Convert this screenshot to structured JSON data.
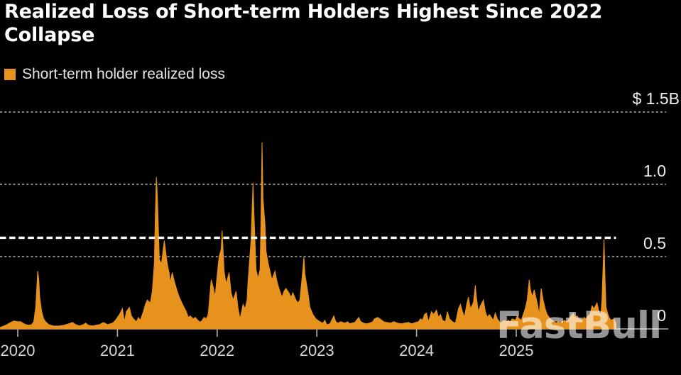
{
  "header": {
    "title": "Realized Loss of Short-term Holders Highest Since 2022 Collapse"
  },
  "legend": {
    "label": "Short-term holder realized loss"
  },
  "watermark": "FastBull",
  "colors": {
    "background": "#000000",
    "series": "#E8921E",
    "grid": "#9A9A9A",
    "axis": "#B0B0B0",
    "title": "#FFFFFF",
    "text": "#E4E4E4",
    "reference_line": "#FFFFFF",
    "watermark": "rgba(255,255,255,0.58)"
  },
  "chart_data": {
    "type": "area",
    "title": "Realized Loss of Short-term Holders Highest Since 2022 Collapse",
    "series_name": "Short-term holder realized loss",
    "unit": "USD billions",
    "grid": "horizontal dashed",
    "legend_position": "top-left",
    "xlim": [
      2019.82,
      2026.0
    ],
    "ylim": [
      0,
      1.5
    ],
    "x_ticks": [
      2020,
      2021,
      2022,
      2023,
      2024,
      2025
    ],
    "y_ticks": [
      {
        "value": 1.5,
        "label": "$ 1.5B"
      },
      {
        "value": 1.0,
        "label": "1.0"
      },
      {
        "value": 0.5,
        "label": "0.5"
      },
      {
        "value": 0.0,
        "label": "0"
      }
    ],
    "reference_line": {
      "value": 0.63,
      "note": "latest-value dashed white line"
    },
    "points": [
      [
        2019.82,
        0.01
      ],
      [
        2019.86,
        0.02
      ],
      [
        2019.89,
        0.03
      ],
      [
        2019.93,
        0.045
      ],
      [
        2019.96,
        0.055
      ],
      [
        2020.0,
        0.05
      ],
      [
        2020.03,
        0.05
      ],
      [
        2020.05,
        0.04
      ],
      [
        2020.08,
        0.03
      ],
      [
        2020.11,
        0.025
      ],
      [
        2020.14,
        0.03
      ],
      [
        2020.16,
        0.05
      ],
      [
        2020.18,
        0.15
      ],
      [
        2020.2,
        0.4
      ],
      [
        2020.21,
        0.35
      ],
      [
        2020.22,
        0.22
      ],
      [
        2020.24,
        0.12
      ],
      [
        2020.26,
        0.07
      ],
      [
        2020.28,
        0.05
      ],
      [
        2020.31,
        0.03
      ],
      [
        2020.36,
        0.02
      ],
      [
        2020.41,
        0.02
      ],
      [
        2020.46,
        0.025
      ],
      [
        2020.51,
        0.035
      ],
      [
        2020.55,
        0.045
      ],
      [
        2020.58,
        0.03
      ],
      [
        2020.62,
        0.02
      ],
      [
        2020.66,
        0.03
      ],
      [
        2020.68,
        0.04
      ],
      [
        2020.71,
        0.025
      ],
      [
        2020.75,
        0.02
      ],
      [
        2020.78,
        0.025
      ],
      [
        2020.82,
        0.03
      ],
      [
        2020.86,
        0.045
      ],
      [
        2020.9,
        0.03
      ],
      [
        2020.95,
        0.04
      ],
      [
        2020.98,
        0.06
      ],
      [
        2021.02,
        0.1
      ],
      [
        2021.05,
        0.14
      ],
      [
        2021.07,
        0.05
      ],
      [
        2021.09,
        0.12
      ],
      [
        2021.12,
        0.15
      ],
      [
        2021.14,
        0.09
      ],
      [
        2021.16,
        0.07
      ],
      [
        2021.19,
        0.05
      ],
      [
        2021.21,
        0.08
      ],
      [
        2021.23,
        0.06
      ],
      [
        2021.26,
        0.12
      ],
      [
        2021.28,
        0.17
      ],
      [
        2021.3,
        0.2
      ],
      [
        2021.33,
        0.18
      ],
      [
        2021.35,
        0.26
      ],
      [
        2021.37,
        0.45
      ],
      [
        2021.38,
        0.8
      ],
      [
        2021.39,
        1.05
      ],
      [
        2021.4,
        0.92
      ],
      [
        2021.41,
        0.7
      ],
      [
        2021.42,
        0.48
      ],
      [
        2021.44,
        0.45
      ],
      [
        2021.45,
        0.5
      ],
      [
        2021.47,
        0.61
      ],
      [
        2021.49,
        0.5
      ],
      [
        2021.5,
        0.45
      ],
      [
        2021.52,
        0.38
      ],
      [
        2021.53,
        0.32
      ],
      [
        2021.55,
        0.39
      ],
      [
        2021.57,
        0.33
      ],
      [
        2021.6,
        0.26
      ],
      [
        2021.62,
        0.22
      ],
      [
        2021.66,
        0.16
      ],
      [
        2021.69,
        0.12
      ],
      [
        2021.71,
        0.08
      ],
      [
        2021.73,
        0.09
      ],
      [
        2021.76,
        0.07
      ],
      [
        2021.78,
        0.08
      ],
      [
        2021.82,
        0.05
      ],
      [
        2021.84,
        0.05
      ],
      [
        2021.87,
        0.08
      ],
      [
        2021.89,
        0.07
      ],
      [
        2021.91,
        0.1
      ],
      [
        2021.94,
        0.34
      ],
      [
        2021.96,
        0.29
      ],
      [
        2021.98,
        0.22
      ],
      [
        2021.99,
        0.3
      ],
      [
        2022.01,
        0.44
      ],
      [
        2022.02,
        0.5
      ],
      [
        2022.04,
        0.55
      ],
      [
        2022.05,
        0.68
      ],
      [
        2022.07,
        0.4
      ],
      [
        2022.09,
        0.31
      ],
      [
        2022.12,
        0.39
      ],
      [
        2022.14,
        0.25
      ],
      [
        2022.16,
        0.2
      ],
      [
        2022.19,
        0.26
      ],
      [
        2022.21,
        0.14
      ],
      [
        2022.23,
        0.07
      ],
      [
        2022.26,
        0.17
      ],
      [
        2022.28,
        0.14
      ],
      [
        2022.3,
        0.2
      ],
      [
        2022.31,
        0.33
      ],
      [
        2022.34,
        0.61
      ],
      [
        2022.36,
        1.01
      ],
      [
        2022.37,
        0.79
      ],
      [
        2022.39,
        0.41
      ],
      [
        2022.41,
        0.35
      ],
      [
        2022.43,
        0.41
      ],
      [
        2022.44,
        0.77
      ],
      [
        2022.45,
        1.29
      ],
      [
        2022.46,
        0.9
      ],
      [
        2022.48,
        0.72
      ],
      [
        2022.49,
        0.54
      ],
      [
        2022.51,
        0.46
      ],
      [
        2022.53,
        0.4
      ],
      [
        2022.55,
        0.34
      ],
      [
        2022.58,
        0.4
      ],
      [
        2022.6,
        0.33
      ],
      [
        2022.62,
        0.28
      ],
      [
        2022.65,
        0.22
      ],
      [
        2022.67,
        0.26
      ],
      [
        2022.69,
        0.28
      ],
      [
        2022.72,
        0.25
      ],
      [
        2022.74,
        0.22
      ],
      [
        2022.76,
        0.25
      ],
      [
        2022.79,
        0.2
      ],
      [
        2022.81,
        0.18
      ],
      [
        2022.83,
        0.2
      ],
      [
        2022.86,
        0.41
      ],
      [
        2022.87,
        0.5
      ],
      [
        2022.88,
        0.38
      ],
      [
        2022.91,
        0.25
      ],
      [
        2022.93,
        0.15
      ],
      [
        2022.96,
        0.1
      ],
      [
        2022.99,
        0.07
      ],
      [
        2023.01,
        0.06
      ],
      [
        2023.03,
        0.05
      ],
      [
        2023.06,
        0.04
      ],
      [
        2023.08,
        0.06
      ],
      [
        2023.1,
        0.03
      ],
      [
        2023.13,
        0.035
      ],
      [
        2023.17,
        0.09
      ],
      [
        2023.19,
        0.05
      ],
      [
        2023.21,
        0.04
      ],
      [
        2023.24,
        0.05
      ],
      [
        2023.28,
        0.04
      ],
      [
        2023.31,
        0.05
      ],
      [
        2023.33,
        0.035
      ],
      [
        2023.35,
        0.04
      ],
      [
        2023.38,
        0.045
      ],
      [
        2023.42,
        0.08
      ],
      [
        2023.44,
        0.05
      ],
      [
        2023.47,
        0.04
      ],
      [
        2023.49,
        0.035
      ],
      [
        2023.53,
        0.04
      ],
      [
        2023.56,
        0.05
      ],
      [
        2023.58,
        0.07
      ],
      [
        2023.61,
        0.08
      ],
      [
        2023.63,
        0.07
      ],
      [
        2023.67,
        0.05
      ],
      [
        2023.7,
        0.045
      ],
      [
        2023.74,
        0.04
      ],
      [
        2023.77,
        0.05
      ],
      [
        2023.81,
        0.04
      ],
      [
        2023.85,
        0.035
      ],
      [
        2023.88,
        0.04
      ],
      [
        2023.92,
        0.045
      ],
      [
        2023.95,
        0.035
      ],
      [
        2023.97,
        0.04
      ],
      [
        2023.99,
        0.045
      ],
      [
        2024.02,
        0.05
      ],
      [
        2024.04,
        0.07
      ],
      [
        2024.06,
        0.06
      ],
      [
        2024.08,
        0.1
      ],
      [
        2024.1,
        0.11
      ],
      [
        2024.12,
        0.05
      ],
      [
        2024.15,
        0.12
      ],
      [
        2024.17,
        0.1
      ],
      [
        2024.2,
        0.13
      ],
      [
        2024.22,
        0.08
      ],
      [
        2024.24,
        0.1
      ],
      [
        2024.26,
        0.06
      ],
      [
        2024.29,
        0.05
      ],
      [
        2024.31,
        0.12
      ],
      [
        2024.33,
        0.07
      ],
      [
        2024.36,
        0.05
      ],
      [
        2024.39,
        0.04
      ],
      [
        2024.42,
        0.14
      ],
      [
        2024.44,
        0.17
      ],
      [
        2024.46,
        0.12
      ],
      [
        2024.48,
        0.08
      ],
      [
        2024.5,
        0.16
      ],
      [
        2024.52,
        0.22
      ],
      [
        2024.54,
        0.14
      ],
      [
        2024.57,
        0.18
      ],
      [
        2024.59,
        0.3
      ],
      [
        2024.6,
        0.22
      ],
      [
        2024.62,
        0.12
      ],
      [
        2024.64,
        0.16
      ],
      [
        2024.67,
        0.2
      ],
      [
        2024.69,
        0.12
      ],
      [
        2024.71,
        0.08
      ],
      [
        2024.73,
        0.1
      ],
      [
        2024.75,
        0.08
      ],
      [
        2024.77,
        0.06
      ],
      [
        2024.79,
        0.11
      ],
      [
        2024.81,
        0.07
      ],
      [
        2024.84,
        0.04
      ],
      [
        2024.86,
        0.05
      ],
      [
        2024.88,
        0.06
      ],
      [
        2024.9,
        0.05
      ],
      [
        2024.92,
        0.06
      ],
      [
        2024.94,
        0.05
      ],
      [
        2024.96,
        0.07
      ],
      [
        2024.99,
        0.06
      ],
      [
        2025.01,
        0.09
      ],
      [
        2025.03,
        0.07
      ],
      [
        2025.05,
        0.06
      ],
      [
        2025.07,
        0.1
      ],
      [
        2025.09,
        0.14
      ],
      [
        2025.11,
        0.2
      ],
      [
        2025.13,
        0.34
      ],
      [
        2025.14,
        0.28
      ],
      [
        2025.16,
        0.22
      ],
      [
        2025.18,
        0.27
      ],
      [
        2025.21,
        0.18
      ],
      [
        2025.23,
        0.1
      ],
      [
        2025.25,
        0.28
      ],
      [
        2025.27,
        0.2
      ],
      [
        2025.29,
        0.14
      ],
      [
        2025.31,
        0.1
      ],
      [
        2025.33,
        0.08
      ],
      [
        2025.36,
        0.06
      ],
      [
        2025.38,
        0.05
      ],
      [
        2025.4,
        0.04
      ],
      [
        2025.42,
        0.05
      ],
      [
        2025.44,
        0.04
      ],
      [
        2025.46,
        0.05
      ],
      [
        2025.48,
        0.06
      ],
      [
        2025.51,
        0.05
      ],
      [
        2025.53,
        0.07
      ],
      [
        2025.55,
        0.09
      ],
      [
        2025.57,
        0.11
      ],
      [
        2025.59,
        0.08
      ],
      [
        2025.61,
        0.09
      ],
      [
        2025.63,
        0.07
      ],
      [
        2025.66,
        0.06
      ],
      [
        2025.68,
        0.08
      ],
      [
        2025.7,
        0.07
      ],
      [
        2025.72,
        0.09
      ],
      [
        2025.74,
        0.1
      ],
      [
        2025.76,
        0.16
      ],
      [
        2025.78,
        0.14
      ],
      [
        2025.81,
        0.18
      ],
      [
        2025.83,
        0.12
      ],
      [
        2025.85,
        0.1
      ],
      [
        2025.86,
        0.2
      ],
      [
        2025.88,
        0.62
      ],
      [
        2025.89,
        0.35
      ],
      [
        2025.9,
        0.15
      ],
      [
        2025.92,
        0.1
      ],
      [
        2025.93,
        0.08
      ],
      [
        2025.95,
        0.06
      ],
      [
        2025.98,
        0.07
      ],
      [
        2026.0,
        0.04
      ]
    ]
  }
}
